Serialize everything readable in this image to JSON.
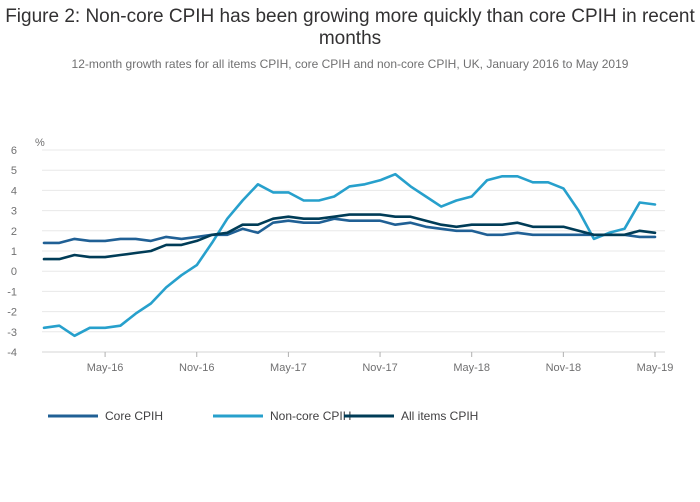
{
  "chart_data": {
    "type": "line",
    "title": "Figure 2: Non-core CPIH has been growing more quickly than core CPIH in recent months",
    "subtitle": "12-month growth rates for all items CPIH, core CPIH and non-core CPIH, UK, January 2016 to May 2019",
    "ylabel": "%",
    "ylim": [
      -4,
      6
    ],
    "yticks": [
      6,
      5,
      4,
      3,
      2,
      1,
      0,
      -1,
      -2,
      -3,
      -4
    ],
    "xticks": [
      {
        "label": "May-16",
        "index": 4
      },
      {
        "label": "Nov-16",
        "index": 10
      },
      {
        "label": "May-17",
        "index": 16
      },
      {
        "label": "Nov-17",
        "index": 22
      },
      {
        "label": "May-18",
        "index": 28
      },
      {
        "label": "Nov-18",
        "index": 34
      },
      {
        "label": "May-19",
        "index": 40
      }
    ],
    "x": [
      "Jan-16",
      "Feb-16",
      "Mar-16",
      "Apr-16",
      "May-16",
      "Jun-16",
      "Jul-16",
      "Aug-16",
      "Sep-16",
      "Oct-16",
      "Nov-16",
      "Dec-16",
      "Jan-17",
      "Feb-17",
      "Mar-17",
      "Apr-17",
      "May-17",
      "Jun-17",
      "Jul-17",
      "Aug-17",
      "Sep-17",
      "Oct-17",
      "Nov-17",
      "Dec-17",
      "Jan-18",
      "Feb-18",
      "Mar-18",
      "Apr-18",
      "May-18",
      "Jun-18",
      "Jul-18",
      "Aug-18",
      "Sep-18",
      "Oct-18",
      "Nov-18",
      "Dec-18",
      "Jan-19",
      "Feb-19",
      "Mar-19",
      "Apr-19",
      "May-19"
    ],
    "legend_position": "bottom",
    "grid": true,
    "series": [
      {
        "name": "Core CPIH",
        "color": "#206095",
        "values": [
          1.4,
          1.4,
          1.6,
          1.5,
          1.5,
          1.6,
          1.6,
          1.5,
          1.7,
          1.6,
          1.7,
          1.8,
          1.8,
          2.1,
          1.9,
          2.4,
          2.5,
          2.4,
          2.4,
          2.6,
          2.5,
          2.5,
          2.5,
          2.3,
          2.4,
          2.2,
          2.1,
          2.0,
          2.0,
          1.8,
          1.8,
          1.9,
          1.8,
          1.8,
          1.8,
          1.8,
          1.8,
          1.8,
          1.8,
          1.7,
          1.7
        ]
      },
      {
        "name": "Non-core CPIH",
        "color": "#27a0cc",
        "values": [
          -2.8,
          -2.7,
          -3.2,
          -2.8,
          -2.8,
          -2.7,
          -2.1,
          -1.6,
          -0.8,
          -0.2,
          0.3,
          1.4,
          2.6,
          3.5,
          4.3,
          3.9,
          3.9,
          3.5,
          3.5,
          3.7,
          4.2,
          4.3,
          4.5,
          4.8,
          4.2,
          3.7,
          3.2,
          3.5,
          3.7,
          4.5,
          4.7,
          4.7,
          4.4,
          4.4,
          4.1,
          3.0,
          1.6,
          1.9,
          2.1,
          3.4,
          3.3
        ]
      },
      {
        "name": "All items CPIH",
        "color": "#003c57",
        "values": [
          0.6,
          0.6,
          0.8,
          0.7,
          0.7,
          0.8,
          0.9,
          1.0,
          1.3,
          1.3,
          1.5,
          1.8,
          1.9,
          2.3,
          2.3,
          2.6,
          2.7,
          2.6,
          2.6,
          2.7,
          2.8,
          2.8,
          2.8,
          2.7,
          2.7,
          2.5,
          2.3,
          2.2,
          2.3,
          2.3,
          2.3,
          2.4,
          2.2,
          2.2,
          2.2,
          2.0,
          1.8,
          1.8,
          1.8,
          2.0,
          1.9
        ]
      }
    ]
  }
}
